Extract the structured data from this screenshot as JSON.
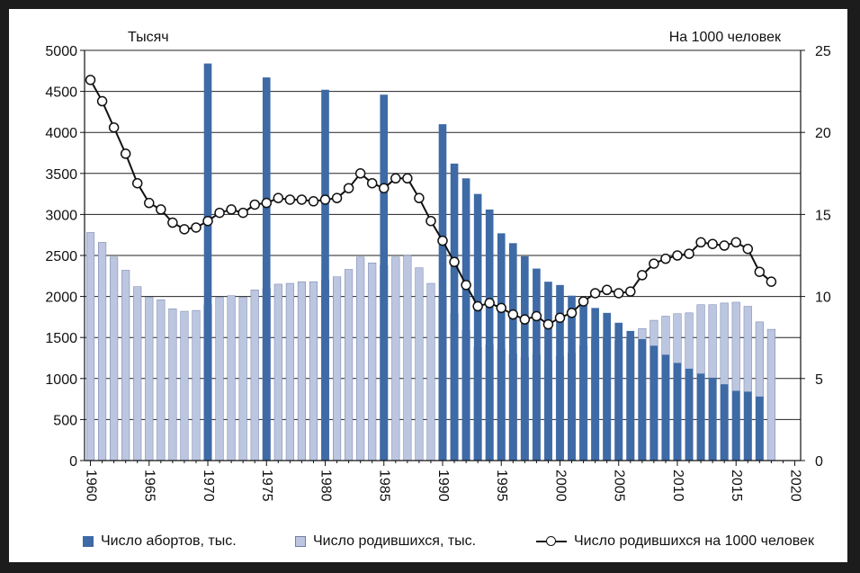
{
  "chart_data": {
    "type": "bar+line",
    "left_axis_title": "Тысяч",
    "right_axis_title": "На 1000 человек",
    "left_ylim": [
      0,
      5000
    ],
    "left_ticks": [
      0,
      500,
      1000,
      1500,
      2000,
      2500,
      3000,
      3500,
      4000,
      4500,
      5000
    ],
    "right_ylim": [
      0,
      25
    ],
    "right_ticks": [
      0,
      5,
      10,
      15,
      20,
      25
    ],
    "x_ticks": [
      1960,
      1965,
      1970,
      1975,
      1980,
      1985,
      1990,
      1995,
      2000,
      2005,
      2010,
      2015,
      2020
    ],
    "x_range": [
      1960,
      2020
    ],
    "grid": true,
    "legend_position": "bottom",
    "series": [
      {
        "name": "Число абортов, тыс.",
        "type": "bar",
        "color": "#3e6aa6",
        "axis": "left",
        "x": [
          1970,
          1975,
          1980,
          1985,
          1990,
          1991,
          1992,
          1993,
          1994,
          1995,
          1996,
          1997,
          1998,
          1999,
          2000,
          2001,
          2002,
          2003,
          2004,
          2005,
          2006,
          2007,
          2008,
          2009,
          2010,
          2011,
          2012,
          2013,
          2014,
          2015,
          2016,
          2017
        ],
        "values": [
          4840,
          4670,
          4520,
          4460,
          4100,
          3620,
          3440,
          3250,
          3060,
          2770,
          2650,
          2490,
          2340,
          2180,
          2140,
          2010,
          1940,
          1860,
          1800,
          1680,
          1580,
          1480,
          1400,
          1290,
          1190,
          1120,
          1060,
          1010,
          930,
          850,
          840,
          780
        ]
      },
      {
        "name": "Число родившихся, тыс.",
        "type": "bar",
        "color": "#bcc6e0",
        "axis": "left",
        "x": [
          1960,
          1961,
          1962,
          1963,
          1964,
          1965,
          1966,
          1967,
          1968,
          1969,
          1970,
          1971,
          1972,
          1973,
          1974,
          1975,
          1976,
          1977,
          1978,
          1979,
          1980,
          1981,
          1982,
          1983,
          1984,
          1985,
          1986,
          1987,
          1988,
          1989,
          1990,
          1991,
          1992,
          1993,
          1994,
          1995,
          1996,
          1997,
          1998,
          1999,
          2000,
          2001,
          2002,
          2003,
          2004,
          2005,
          2006,
          2007,
          2008,
          2009,
          2010,
          2011,
          2012,
          2013,
          2014,
          2015,
          2016,
          2017,
          2018
        ],
        "values": [
          2780,
          2660,
          2480,
          2320,
          2120,
          1990,
          1960,
          1850,
          1820,
          1830,
          1900,
          1990,
          2010,
          1990,
          2080,
          2100,
          2150,
          2160,
          2180,
          2180,
          2200,
          2240,
          2330,
          2480,
          2410,
          2380,
          2480,
          2500,
          2350,
          2160,
          1990,
          1790,
          1590,
          1380,
          1410,
          1360,
          1300,
          1260,
          1290,
          1220,
          1270,
          1310,
          1400,
          1480,
          1500,
          1460,
          1480,
          1610,
          1710,
          1760,
          1790,
          1800,
          1900,
          1900,
          1920,
          1930,
          1880,
          1690,
          1600
        ]
      },
      {
        "name": "Число родившихся на 1000 человек",
        "type": "line",
        "color": "#111111",
        "axis": "right",
        "x": [
          1960,
          1961,
          1962,
          1963,
          1964,
          1965,
          1966,
          1967,
          1968,
          1969,
          1970,
          1971,
          1972,
          1973,
          1974,
          1975,
          1976,
          1977,
          1978,
          1979,
          1980,
          1981,
          1982,
          1983,
          1984,
          1985,
          1986,
          1987,
          1988,
          1989,
          1990,
          1991,
          1992,
          1993,
          1994,
          1995,
          1996,
          1997,
          1998,
          1999,
          2000,
          2001,
          2002,
          2003,
          2004,
          2005,
          2006,
          2007,
          2008,
          2009,
          2010,
          2011,
          2012,
          2013,
          2014,
          2015,
          2016,
          2017,
          2018
        ],
        "values": [
          23.2,
          21.9,
          20.3,
          18.7,
          16.9,
          15.7,
          15.3,
          14.5,
          14.1,
          14.2,
          14.6,
          15.1,
          15.3,
          15.1,
          15.6,
          15.7,
          16.0,
          15.9,
          15.9,
          15.8,
          15.9,
          16.0,
          16.6,
          17.5,
          16.9,
          16.6,
          17.2,
          17.2,
          16.0,
          14.6,
          13.4,
          12.1,
          10.7,
          9.4,
          9.6,
          9.3,
          8.9,
          8.6,
          8.8,
          8.3,
          8.7,
          9.0,
          9.7,
          10.2,
          10.4,
          10.2,
          10.3,
          11.3,
          12.0,
          12.3,
          12.5,
          12.6,
          13.3,
          13.2,
          13.1,
          13.3,
          12.9,
          11.5,
          10.9
        ]
      }
    ]
  }
}
